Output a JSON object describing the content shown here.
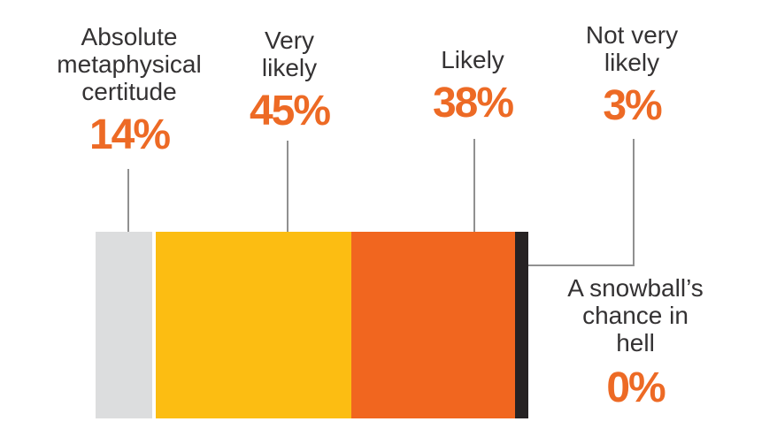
{
  "chart_data": {
    "type": "bar",
    "orientation": "horizontal",
    "stacked": true,
    "title": "",
    "categories": [
      "Absolute metaphysical certitude",
      "Very likely",
      "Likely",
      "Not very likely",
      "A snowball’s chance in hell"
    ],
    "values": [
      14,
      45,
      38,
      3,
      0
    ],
    "unit": "%",
    "segments": [
      {
        "slug": "absolute-metaphysical-certitude",
        "value": 14,
        "color": "#DCDDDE"
      },
      {
        "slug": "very-likely",
        "value": 45,
        "color": "#FCBD12"
      },
      {
        "slug": "likely",
        "value": 38,
        "color": "#F1661F"
      },
      {
        "slug": "not-very-likely",
        "value": 3,
        "color": "#262223"
      }
    ],
    "value_label_color": "#ED6A25",
    "category_label_color": "#343233",
    "connector_color": "#909090",
    "legend_position": "none",
    "grid": false
  },
  "labels": [
    {
      "lines": [
        "Absolute",
        "metaphysical",
        "certitude"
      ],
      "pct": "14%"
    },
    {
      "lines": [
        "Very",
        "likely"
      ],
      "pct": "45%"
    },
    {
      "lines": [
        "Likely"
      ],
      "pct": "38%"
    },
    {
      "lines": [
        "Not very",
        "likely"
      ],
      "pct": "3%"
    },
    {
      "lines": [
        "A snowball’s",
        "chance in",
        "hell"
      ],
      "pct": "0%"
    }
  ]
}
